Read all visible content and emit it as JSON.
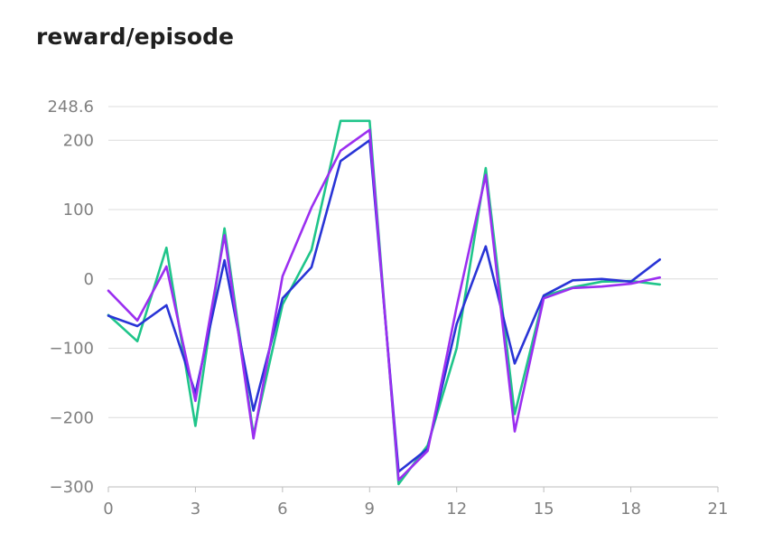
{
  "chart_data": {
    "type": "line",
    "title": "reward/episode",
    "xlabel": "",
    "ylabel": "",
    "xlim": [
      0,
      21
    ],
    "ylim": [
      -300,
      248.6
    ],
    "x_ticks": [
      "0",
      "3",
      "6",
      "9",
      "12",
      "15",
      "18",
      "21"
    ],
    "y_ticks": [
      "−300",
      "−200",
      "−100",
      "0",
      "100",
      "200",
      "248.6"
    ],
    "x_tick_values": [
      0,
      3,
      6,
      9,
      12,
      15,
      18,
      21
    ],
    "y_tick_values": [
      -300,
      -200,
      -100,
      0,
      100,
      200,
      248.6
    ],
    "grid": true,
    "legend": "none",
    "x": [
      0,
      1,
      2,
      3,
      4,
      5,
      6,
      7,
      8,
      9,
      10,
      11,
      12,
      13,
      14,
      15,
      16,
      17,
      18,
      19
    ],
    "series": [
      {
        "color": "#1fc58a",
        "values": [
          -52,
          -90,
          45,
          -212,
          73,
          -225,
          -37,
          42,
          228,
          228,
          -296,
          -240,
          -100,
          160,
          -195,
          -25,
          -12,
          -4,
          -3,
          -8
        ]
      },
      {
        "color": "#2934d6",
        "values": [
          -53,
          -68,
          -38,
          -165,
          27,
          -190,
          -28,
          17,
          170,
          200,
          -278,
          -245,
          -65,
          47,
          -122,
          -24,
          -2,
          0,
          -4,
          28
        ]
      },
      {
        "color": "#9b2ff0",
        "values": [
          -17,
          -60,
          18,
          -176,
          63,
          -230,
          4,
          103,
          185,
          215,
          -290,
          -248,
          -40,
          150,
          -220,
          -28,
          -13,
          -11,
          -7,
          2
        ]
      }
    ]
  }
}
